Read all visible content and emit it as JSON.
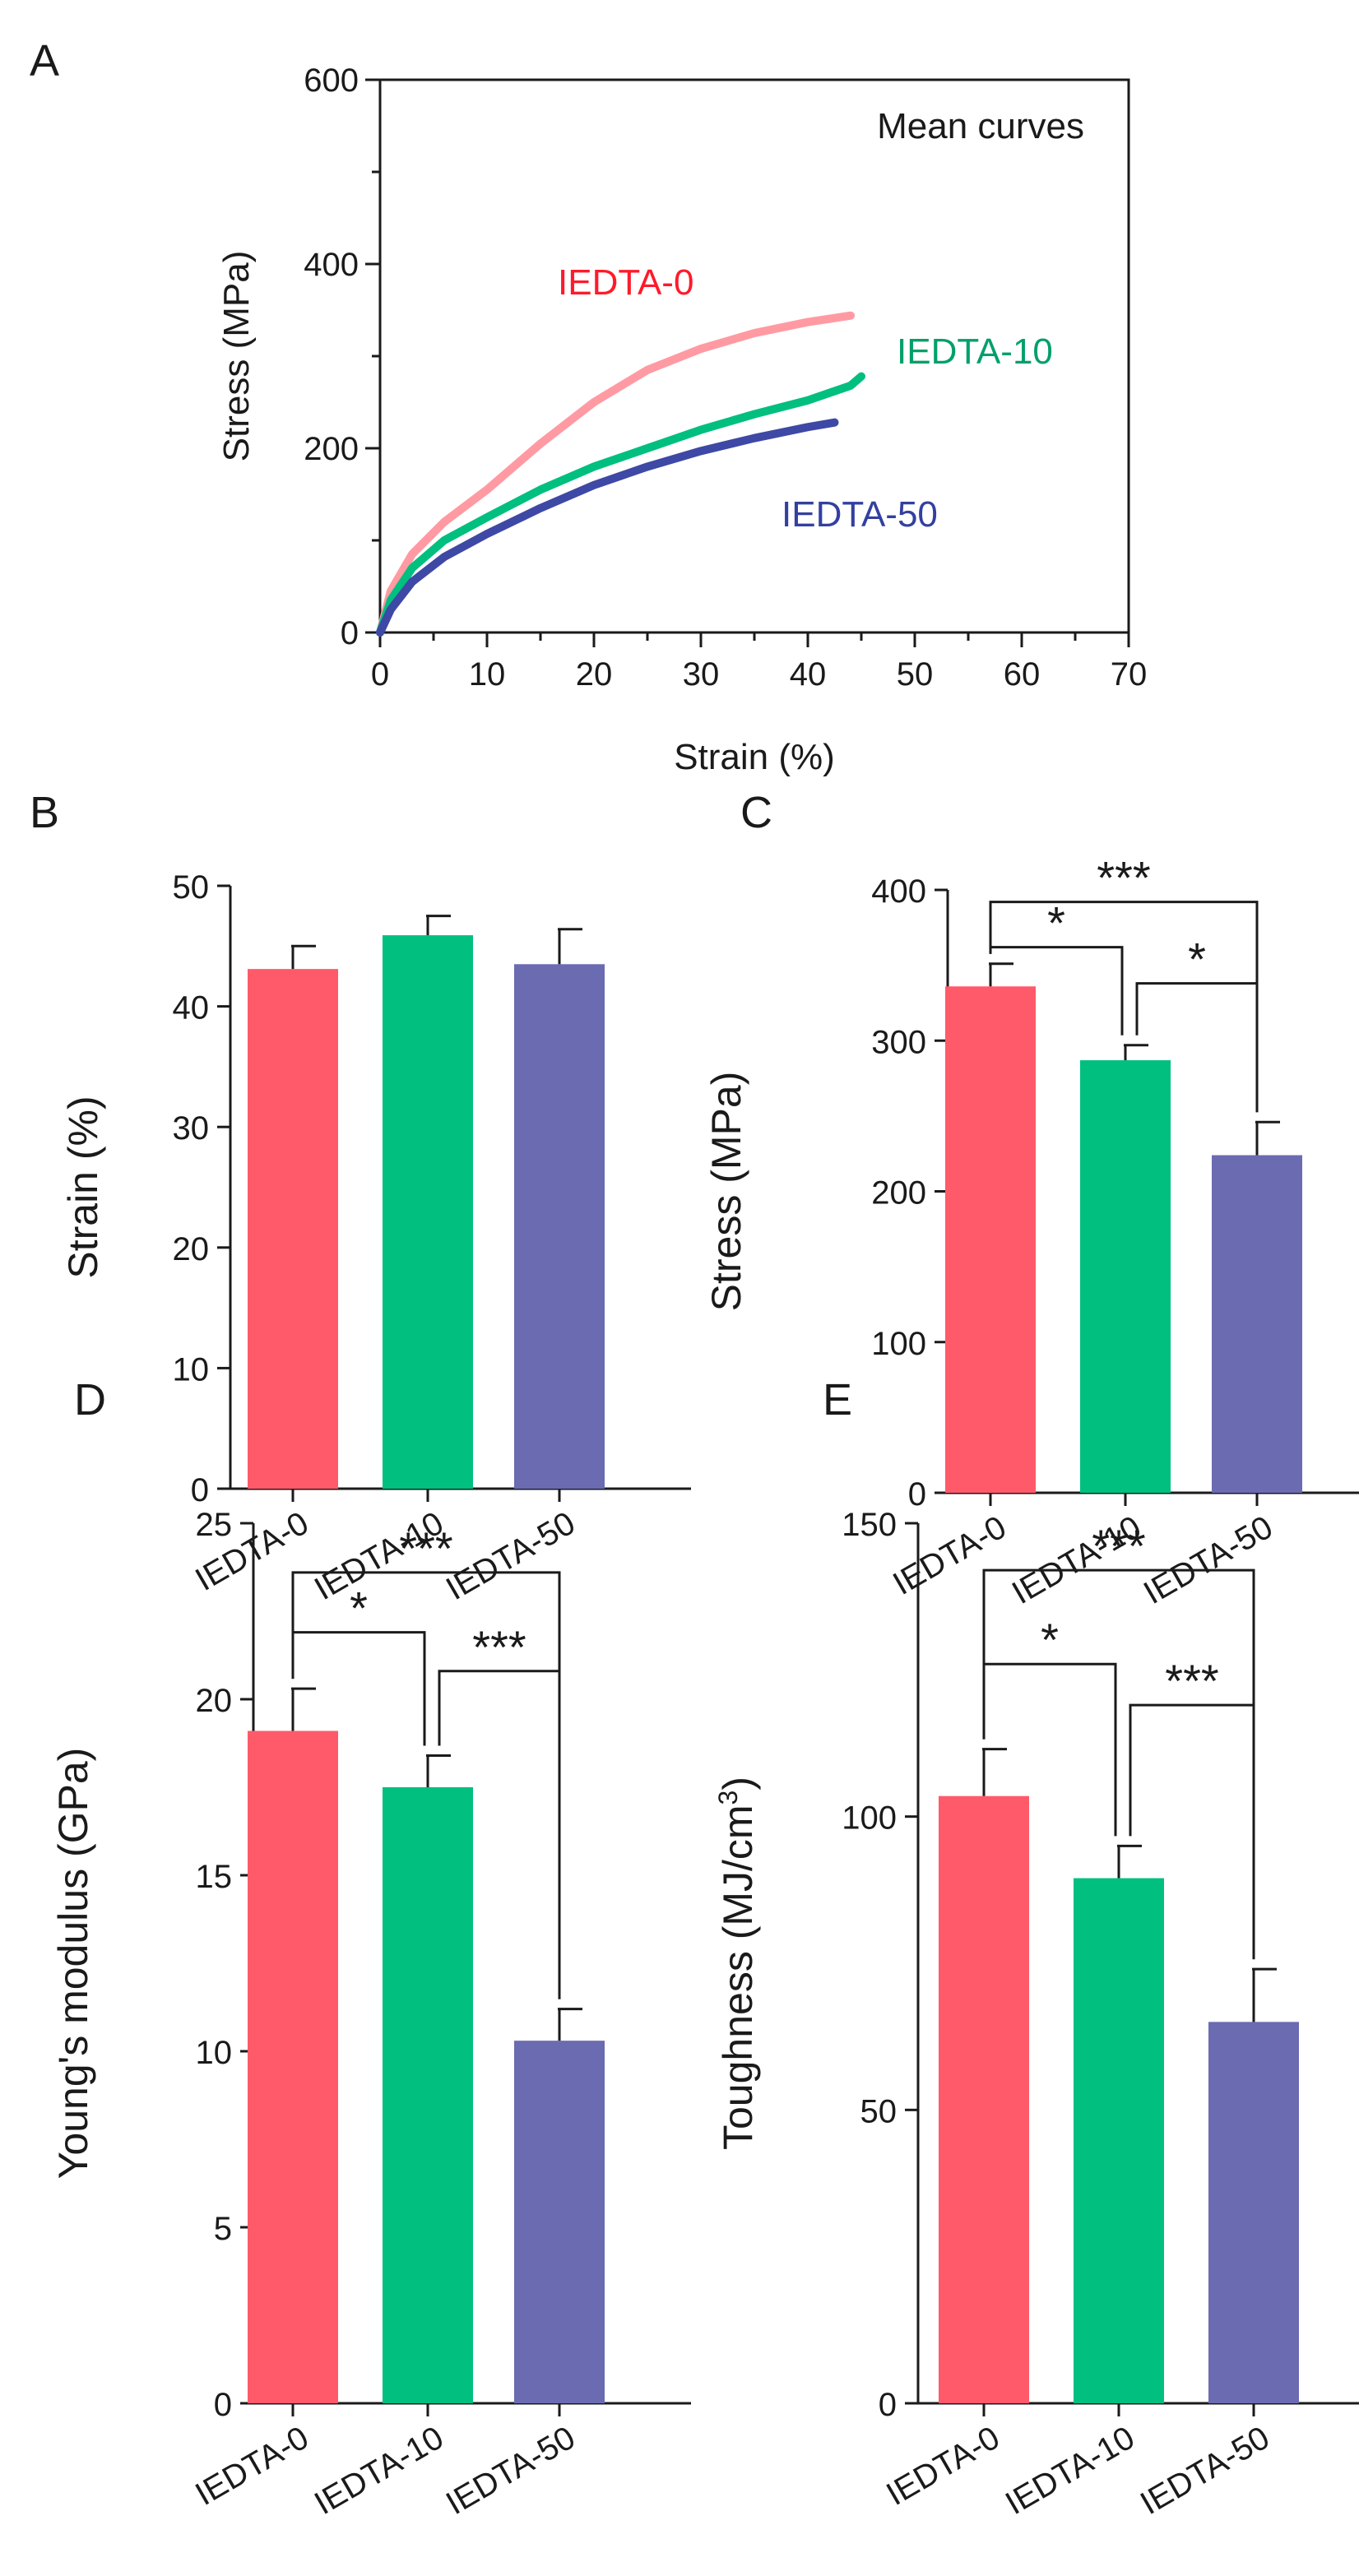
{
  "colors": {
    "IEDTA-0": "#ff5a6a",
    "IEDTA-0-curve": "#ff9aa3",
    "IEDTA-10": "#00bf7f",
    "IEDTA-50": "#6b6bb2",
    "IEDTA-50-curve": "#3e48a5",
    "axis": "#1a1a1a",
    "label_red": "#ff1a2a",
    "label_green": "#00a06a",
    "label_blue": "#3340a0"
  },
  "chart_data": [
    {
      "panel": "A",
      "type": "line",
      "title": "Mean curves",
      "xlabel": "Strain (%)",
      "ylabel": "Stress (MPa)",
      "xlim": [
        0,
        70
      ],
      "ylim": [
        0,
        600
      ],
      "xticks": [
        "0",
        "10",
        "20",
        "30",
        "40",
        "50",
        "60",
        "70"
      ],
      "yticks": [
        "0",
        "200",
        "400",
        "600"
      ],
      "series": [
        {
          "name": "IEDTA-0",
          "color_key": "IEDTA-0-curve",
          "label_color_key": "label_red",
          "x": [
            0,
            1,
            3,
            6,
            10,
            15,
            20,
            25,
            30,
            35,
            40,
            44
          ],
          "y": [
            0,
            45,
            85,
            120,
            155,
            205,
            250,
            285,
            308,
            325,
            337,
            344
          ]
        },
        {
          "name": "IEDTA-10",
          "color_key": "IEDTA-10",
          "label_color_key": "label_green",
          "x": [
            0,
            1,
            3,
            6,
            10,
            15,
            20,
            25,
            30,
            35,
            40,
            44,
            45
          ],
          "y": [
            0,
            35,
            70,
            100,
            125,
            155,
            180,
            200,
            220,
            237,
            252,
            268,
            278
          ]
        },
        {
          "name": "IEDTA-50",
          "color_key": "IEDTA-50-curve",
          "label_color_key": "label_blue",
          "x": [
            0,
            1,
            3,
            6,
            10,
            15,
            20,
            25,
            30,
            35,
            40,
            42.5
          ],
          "y": [
            0,
            25,
            55,
            82,
            107,
            135,
            160,
            180,
            197,
            211,
            223,
            228
          ]
        }
      ]
    },
    {
      "panel": "B",
      "type": "bar",
      "categories": [
        "IEDTA-0",
        "IEDTA-10",
        "IEDTA-50"
      ],
      "values": [
        43.1,
        45.9,
        43.5
      ],
      "errors": [
        1.9,
        1.6,
        2.9
      ],
      "ylabel": "Strain (%)",
      "ylim": [
        0,
        50
      ],
      "yticks": [
        "0",
        "10",
        "20",
        "30",
        "40",
        "50"
      ],
      "significance": []
    },
    {
      "panel": "C",
      "type": "bar",
      "categories": [
        "IEDTA-0",
        "IEDTA-10",
        "IEDTA-50"
      ],
      "values": [
        336,
        287,
        224
      ],
      "errors": [
        15,
        10,
        22
      ],
      "ylabel": "Stress (MPa)",
      "ylim": [
        0,
        400
      ],
      "yticks": [
        "0",
        "100",
        "200",
        "300",
        "400"
      ],
      "significance": [
        {
          "from": 0,
          "to": 1,
          "label": "*",
          "y": 362
        },
        {
          "from": 1,
          "to": 2,
          "label": "*",
          "y": 338
        },
        {
          "from": 0,
          "to": 2,
          "label": "***",
          "y": 392
        }
      ]
    },
    {
      "panel": "D",
      "type": "bar",
      "categories": [
        "IEDTA-0",
        "IEDTA-10",
        "IEDTA-50"
      ],
      "values": [
        19.1,
        17.5,
        10.3
      ],
      "errors": [
        1.2,
        0.9,
        0.9
      ],
      "ylabel": "Young's modulus (GPa)",
      "ylim": [
        0,
        25
      ],
      "yticks": [
        "0",
        "5",
        "10",
        "15",
        "20",
        "25"
      ],
      "significance": [
        {
          "from": 0,
          "to": 1,
          "label": "*",
          "y": 21.9
        },
        {
          "from": 1,
          "to": 2,
          "label": "***",
          "y": 20.8
        },
        {
          "from": 0,
          "to": 2,
          "label": "***",
          "y": 23.6
        }
      ]
    },
    {
      "panel": "E",
      "type": "bar",
      "categories": [
        "IEDTA-0",
        "IEDTA-10",
        "IEDTA-50"
      ],
      "values": [
        103.5,
        89.5,
        65
      ],
      "errors": [
        8,
        5.5,
        9
      ],
      "ylabel": "Toughness (MJ/cm",
      "ylabel_sup": "3",
      "ylabel_close": ")",
      "ylim": [
        0,
        150
      ],
      "yticks": [
        "0",
        "50",
        "100",
        "150"
      ],
      "significance": [
        {
          "from": 0,
          "to": 1,
          "label": "*",
          "y": 126
        },
        {
          "from": 1,
          "to": 2,
          "label": "***",
          "y": 119
        },
        {
          "from": 0,
          "to": 2,
          "label": "***",
          "y": 142
        }
      ]
    }
  ]
}
